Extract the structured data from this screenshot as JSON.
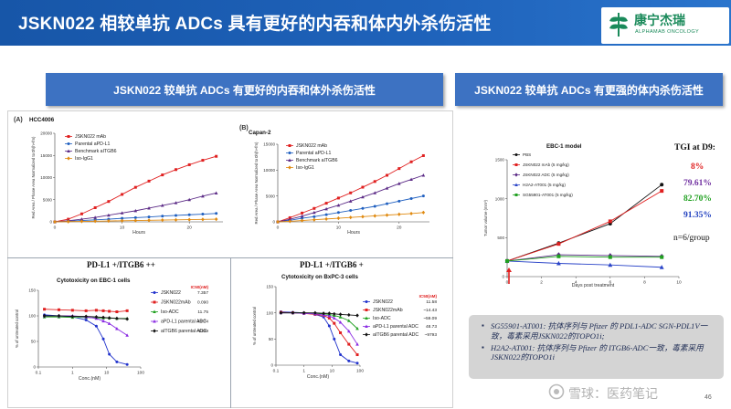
{
  "slide_title": "JSKN022 相较单抗 ADCs 具有更好的内吞和体内外杀伤活性",
  "logo": {
    "name_cn": "康宁杰瑞",
    "name_en": "ALPHAMAB ONCOLOGY"
  },
  "banners": {
    "left": "JSKN022 较单抗 ADCs 有更好的内吞和体外杀伤活性",
    "right": "JSKN022 较单抗 ADCs 有更强的体内杀伤活性"
  },
  "panel_labels": {
    "a": "(A)",
    "b": "(B)"
  },
  "subheads": {
    "left": "PD-L1 +/ITGB6 ++",
    "right": "PD-L1 +/ITGB6 +"
  },
  "tgi": {
    "title": "TGI at D9:",
    "values": [
      "8%",
      "79.61%",
      "82.70%",
      "91.35%"
    ],
    "colors": [
      "#e02020",
      "#7030a0",
      "#20a020",
      "#1f3fbf"
    ],
    "n_text": "n=6/group"
  },
  "notes": [
    "SG55901-AT001: 抗体序列与 Pfizer 的 PDL1-ADC SGN-PDL1V一致，毒素采用JSKN022的TOPO1i;",
    "H2A2-AT001: 抗体序列与 Pfizer 的 ITGB6-ADC一致，毒素采用JSKN022的TOPO1i"
  ],
  "watermark": "雪球：医药笔记",
  "page_number": "46",
  "chart_data": [
    {
      "id": "internalization-hcc4006",
      "type": "line",
      "title": "HCC4006",
      "xlabel": "Hours",
      "ylabel": "Red Area / Phase Area Normalized to 0h(h+fm)",
      "xlim": [
        0,
        25
      ],
      "ylim": [
        0,
        20000
      ],
      "xticks": [
        0,
        10,
        20
      ],
      "yticks": [
        0,
        5000,
        10000,
        15000,
        20000
      ],
      "ytick_labels": [
        "0",
        "5000",
        "10000",
        "15000",
        "20000"
      ],
      "legend": "top-left",
      "series": [
        {
          "name": "JSKN022 mAb",
          "color": "#e02020",
          "marker": "square",
          "x": [
            0,
            2,
            4,
            6,
            8,
            10,
            12,
            14,
            16,
            18,
            20,
            22,
            24
          ],
          "y": [
            0,
            600,
            1800,
            3200,
            4600,
            6200,
            7800,
            9200,
            10600,
            11800,
            12900,
            13900,
            14800
          ]
        },
        {
          "name": "Parental aPD-L1",
          "color": "#2060c0",
          "marker": "circle",
          "x": [
            0,
            2,
            4,
            6,
            8,
            10,
            12,
            14,
            16,
            18,
            20,
            22,
            24
          ],
          "y": [
            0,
            150,
            300,
            450,
            600,
            800,
            950,
            1100,
            1300,
            1450,
            1600,
            1750,
            1900
          ]
        },
        {
          "name": "Benchmark aITGB6",
          "color": "#5b2a86",
          "marker": "triangle",
          "x": [
            0,
            2,
            4,
            6,
            8,
            10,
            12,
            14,
            16,
            18,
            20,
            22,
            24
          ],
          "y": [
            0,
            250,
            600,
            1000,
            1500,
            2000,
            2500,
            3100,
            3700,
            4300,
            5000,
            5800,
            6500
          ]
        },
        {
          "name": "Iso-IgG1",
          "color": "#e08a10",
          "marker": "diamond",
          "x": [
            0,
            2,
            4,
            6,
            8,
            10,
            12,
            14,
            16,
            18,
            20,
            22,
            24
          ],
          "y": [
            0,
            50,
            100,
            150,
            200,
            250,
            300,
            350,
            400,
            450,
            500,
            550,
            600
          ]
        }
      ]
    },
    {
      "id": "internalization-capan2",
      "type": "line",
      "title": "Capan-2",
      "xlabel": "Hours",
      "ylabel": "Red Area / Phase Area Normalized to 0h(h+fm)",
      "xlim": [
        0,
        25
      ],
      "ylim": [
        0,
        15000
      ],
      "xticks": [
        0,
        10,
        20
      ],
      "yticks": [
        0,
        5000,
        10000,
        15000
      ],
      "ytick_labels": [
        "0",
        "5000",
        "10000",
        "15000"
      ],
      "legend": "top-left",
      "series": [
        {
          "name": "JSKN022 mAb",
          "color": "#e02020",
          "marker": "square",
          "x": [
            0,
            2,
            4,
            6,
            8,
            10,
            12,
            14,
            16,
            18,
            20,
            22,
            24
          ],
          "y": [
            0,
            800,
            1700,
            2600,
            3600,
            4600,
            5600,
            6700,
            7800,
            9000,
            10300,
            11600,
            12800
          ]
        },
        {
          "name": "Parental aPD-L1",
          "color": "#2060c0",
          "marker": "circle",
          "x": [
            0,
            2,
            4,
            6,
            8,
            10,
            12,
            14,
            16,
            18,
            20,
            22,
            24
          ],
          "y": [
            0,
            300,
            700,
            1000,
            1400,
            1800,
            2200,
            2600,
            3000,
            3500,
            4000,
            4500,
            5000
          ]
        },
        {
          "name": "Benchmark aITGB6",
          "color": "#5b2a86",
          "marker": "triangle",
          "x": [
            0,
            2,
            4,
            6,
            8,
            10,
            12,
            14,
            16,
            18,
            20,
            22,
            24
          ],
          "y": [
            0,
            500,
            1100,
            1800,
            2500,
            3200,
            4000,
            4800,
            5600,
            6500,
            7400,
            8200,
            9000
          ]
        },
        {
          "name": "Iso-IgG1",
          "color": "#e08a10",
          "marker": "diamond",
          "x": [
            0,
            2,
            4,
            6,
            8,
            10,
            12,
            14,
            16,
            18,
            20,
            22,
            24
          ],
          "y": [
            0,
            100,
            250,
            400,
            550,
            700,
            850,
            1000,
            1150,
            1300,
            1450,
            1600,
            1800
          ]
        }
      ]
    },
    {
      "id": "cytotoxicity-ebc1",
      "type": "line",
      "title": "Cytotoxicity on EBC-1 cells",
      "xlabel": "Conc.(nM)",
      "ylabel": "% of untreated control",
      "xscale": "log",
      "xlim": [
        0.1,
        100
      ],
      "ylim": [
        0,
        150
      ],
      "xticks": [
        0.1,
        1,
        10,
        100
      ],
      "xtick_labels": [
        "0.1",
        "1",
        "10",
        "100"
      ],
      "yticks": [
        0,
        50,
        100,
        150
      ],
      "ic50_header": "IC50(nM)",
      "legend": "right",
      "series": [
        {
          "name": "JSKN022",
          "ic50": "7.357",
          "color": "#2233cc",
          "marker": "circle",
          "x": [
            0.15,
            0.4,
            1,
            2.5,
            5,
            8,
            12,
            20,
            40
          ],
          "y": [
            102,
            100,
            98,
            92,
            80,
            55,
            25,
            10,
            5
          ]
        },
        {
          "name": "JSKN022mAb",
          "ic50": "0.090",
          "color": "#e02020",
          "marker": "square",
          "x": [
            0.15,
            0.4,
            1,
            2.5,
            5,
            8,
            12,
            20,
            40
          ],
          "y": [
            113,
            112,
            111,
            110,
            111,
            110,
            109,
            108,
            110
          ]
        },
        {
          "name": "Iso-ADC",
          "ic50": "11.75",
          "color": "#20a020",
          "marker": "triangle",
          "x": [
            0.15,
            0.4,
            1,
            2.5,
            5,
            8,
            12,
            20,
            40
          ],
          "y": [
            98,
            98,
            97,
            97,
            96,
            96,
            96,
            95,
            95
          ]
        },
        {
          "name": "aPD-L1 parental ADC",
          "ic50": "48.74",
          "color": "#8a2be2",
          "marker": "triangle",
          "x": [
            0.15,
            0.4,
            1,
            2.5,
            5,
            8,
            12,
            20,
            40
          ],
          "y": [
            100,
            100,
            100,
            98,
            95,
            90,
            85,
            75,
            62
          ]
        },
        {
          "name": "aITGB6 parental ADC",
          "ic50": "~1339",
          "color": "#111111",
          "marker": "diamond",
          "x": [
            0.15,
            0.4,
            1,
            2.5,
            5,
            8,
            12,
            20,
            40
          ],
          "y": [
            100,
            100,
            99,
            99,
            98,
            97,
            96,
            95,
            94
          ]
        }
      ]
    },
    {
      "id": "cytotoxicity-bxpc3",
      "type": "line",
      "title": "Cytotoxicity on BxPC-3 cells",
      "xlabel": "Conc.(nM)",
      "ylabel": "% of untreated control",
      "xscale": "log",
      "xlim": [
        0.1,
        100
      ],
      "ylim": [
        0,
        150
      ],
      "xticks": [
        0.1,
        1,
        10,
        100
      ],
      "xtick_labels": [
        "0.1",
        "1",
        "10",
        "100"
      ],
      "yticks": [
        0,
        50,
        100,
        150
      ],
      "ic50_header": "IC50(nM)",
      "legend": "right",
      "series": [
        {
          "name": "JSKN022",
          "ic50": "11.58",
          "color": "#2233cc",
          "marker": "circle",
          "x": [
            0.15,
            0.4,
            1,
            2.5,
            5,
            8,
            12,
            20,
            40,
            80
          ],
          "y": [
            102,
            101,
            100,
            97,
            92,
            75,
            50,
            20,
            8,
            4
          ]
        },
        {
          "name": "JSKN022mAb",
          "ic50": "~14.43",
          "color": "#e02020",
          "marker": "square",
          "x": [
            0.15,
            0.4,
            1,
            2.5,
            5,
            8,
            12,
            20,
            40,
            80
          ],
          "y": [
            101,
            100,
            99,
            97,
            95,
            90,
            80,
            62,
            40,
            20
          ]
        },
        {
          "name": "Iso-ADC",
          "ic50": "~59.09",
          "color": "#20a020",
          "marker": "triangle",
          "x": [
            0.15,
            0.4,
            1,
            2.5,
            5,
            8,
            12,
            20,
            40,
            80
          ],
          "y": [
            100,
            100,
            100,
            99,
            98,
            97,
            95,
            92,
            85,
            70
          ]
        },
        {
          "name": "aPD-L1 parental ADC",
          "ic50": "48.73",
          "color": "#8a2be2",
          "marker": "triangle",
          "x": [
            0.15,
            0.4,
            1,
            2.5,
            5,
            8,
            12,
            20,
            40,
            80
          ],
          "y": [
            100,
            100,
            99,
            98,
            96,
            94,
            90,
            82,
            65,
            40
          ]
        },
        {
          "name": "aITGB6 parental ADC",
          "ic50": "~9793",
          "color": "#111111",
          "marker": "diamond",
          "x": [
            0.15,
            0.4,
            1,
            2.5,
            5,
            8,
            12,
            20,
            40,
            80
          ],
          "y": [
            100,
            100,
            100,
            100,
            99,
            99,
            98,
            97,
            96,
            95
          ]
        }
      ]
    },
    {
      "id": "in-vivo-ebc1",
      "type": "line",
      "title": "EBC-1 model",
      "xlabel": "Days post treatment",
      "ylabel": "Tumor volume (mm³)",
      "xlim": [
        0,
        10
      ],
      "ylim": [
        0,
        1500
      ],
      "xticks": [
        0,
        2,
        4,
        6,
        8,
        10
      ],
      "yticks": [
        0,
        500,
        1000,
        1500
      ],
      "legend": "top-left",
      "series": [
        {
          "name": "PBS",
          "color": "#111111",
          "marker": "circle",
          "x": [
            0,
            3,
            6,
            9
          ],
          "y": [
            200,
            430,
            680,
            1180
          ]
        },
        {
          "name": "JSKN022 mAb (5 mg/kg)",
          "color": "#e02020",
          "marker": "square",
          "x": [
            0,
            3,
            6,
            9
          ],
          "y": [
            200,
            420,
            710,
            1100
          ]
        },
        {
          "name": "JSKN022 ADC (5 mg/kg)",
          "color": "#5b2a86",
          "marker": "diamond",
          "x": [
            0,
            3,
            6,
            9
          ],
          "y": [
            200,
            280,
            270,
            260
          ]
        },
        {
          "name": "H2A2-AT001 (5 mg/kg)",
          "color": "#2a44c8",
          "marker": "triangle",
          "x": [
            0,
            3,
            6,
            9
          ],
          "y": [
            200,
            170,
            150,
            120
          ]
        },
        {
          "name": "SG55901-AT001 (5 mg/kg)",
          "color": "#20a020",
          "marker": "square",
          "x": [
            0,
            3,
            6,
            9
          ],
          "y": [
            200,
            260,
            250,
            250
          ]
        }
      ]
    }
  ]
}
